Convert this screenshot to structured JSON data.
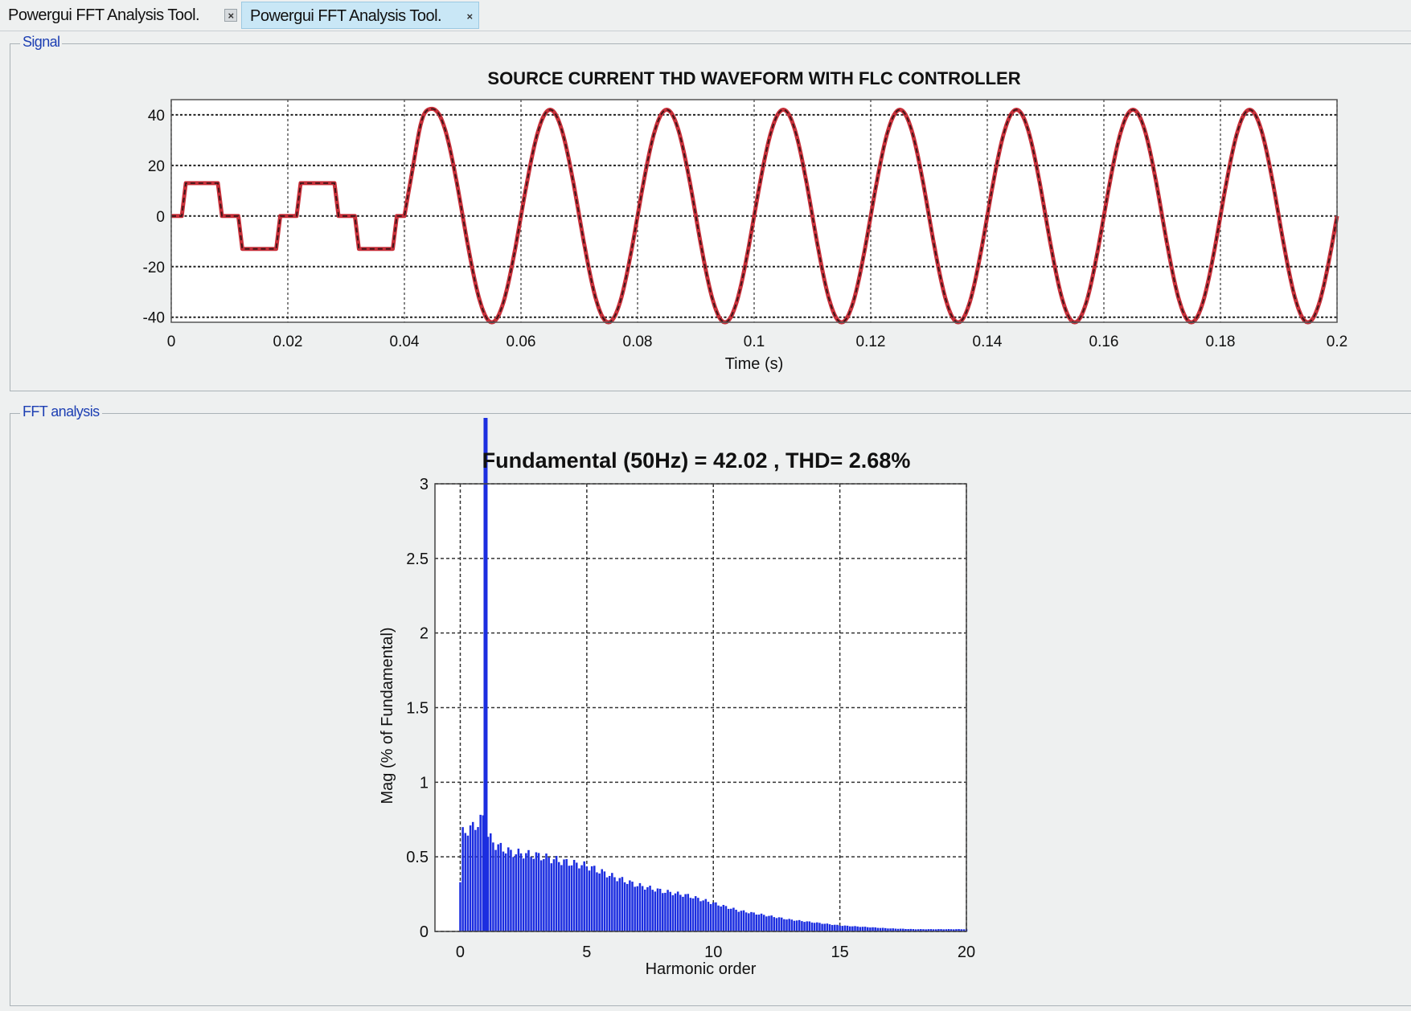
{
  "tabs": [
    {
      "label": "Powergui FFT Analysis Tool.",
      "active": false
    },
    {
      "label": "Powergui FFT Analysis Tool.",
      "active": true
    }
  ],
  "tab_close_glyph": "×",
  "panels": {
    "signal_title": "Signal",
    "fft_title": "FFT analysis"
  },
  "colors": {
    "tab_active_bg": "#c9e7f6",
    "panel_title": "#1d3fb3",
    "signal_trace": "#c8303a",
    "fft_bars": "#1c2ee0"
  },
  "chart_data": [
    {
      "type": "line",
      "title": "SOURCE CURRENT THD WAVEFORM WITH FLC CONTROLLER",
      "xlabel": "Time (s)",
      "ylabel": "",
      "xlim": [
        0,
        0.2
      ],
      "ylim": [
        -42,
        46
      ],
      "xticks": [
        "0",
        "0.02",
        "0.04",
        "0.06",
        "0.08",
        "0.1",
        "0.12",
        "0.14",
        "0.16",
        "0.18",
        "0.2"
      ],
      "yticks": [
        "40",
        "20",
        "0",
        "-20",
        "-40"
      ],
      "grid": true,
      "series": [
        {
          "segments": [
            {
              "t": [
                0,
                0.0018,
                0.0025,
                0.008,
                0.0087,
                0.0115,
                0.0122,
                0.018,
                0.0187,
                0.0215,
                0.0222,
                0.028,
                0.0287,
                0.0315,
                0.0322,
                0.038,
                0.0387,
                0.04
              ],
              "v": [
                0,
                0,
                13,
                13,
                0,
                0,
                -13,
                -13,
                0,
                0,
                13,
                13,
                0,
                0,
                -13,
                -13,
                0,
                0
              ]
            },
            {
              "function": "42.02*sin(2*pi*50*(t-0.04))",
              "t_range": [
                0.04,
                0.2
              ],
              "overshoot_peak": [
                0.043,
                46
              ]
            }
          ]
        }
      ]
    },
    {
      "type": "bar",
      "title": "Fundamental (50Hz) = 42.02 , THD= 2.68%",
      "xlabel": "Harmonic order",
      "ylabel": "Mag (% of Fundamental)",
      "xlim": [
        -1,
        20
      ],
      "ylim": [
        0,
        3
      ],
      "xticks": [
        "0",
        "5",
        "10",
        "15",
        "20"
      ],
      "yticks": [
        "3",
        "2.5",
        "2",
        "1.5",
        "1",
        "0.5",
        "0"
      ],
      "grid": true,
      "fundamental": {
        "order": 1,
        "value_clipped": true
      },
      "bar_step": 0.1,
      "envelope": {
        "x": [
          0,
          0.1,
          0.2,
          0.6,
          0.9,
          1.1,
          1.4,
          2,
          3,
          4,
          5,
          6,
          7,
          8,
          9,
          10,
          11,
          12,
          13,
          14,
          15,
          16,
          17,
          18,
          19,
          20
        ],
        "y": [
          0.33,
          0.66,
          0.67,
          0.71,
          0.76,
          0.64,
          0.58,
          0.53,
          0.51,
          0.47,
          0.44,
          0.37,
          0.31,
          0.27,
          0.24,
          0.19,
          0.14,
          0.11,
          0.08,
          0.06,
          0.04,
          0.03,
          0.02,
          0.015,
          0.015,
          0.015
        ]
      }
    }
  ]
}
